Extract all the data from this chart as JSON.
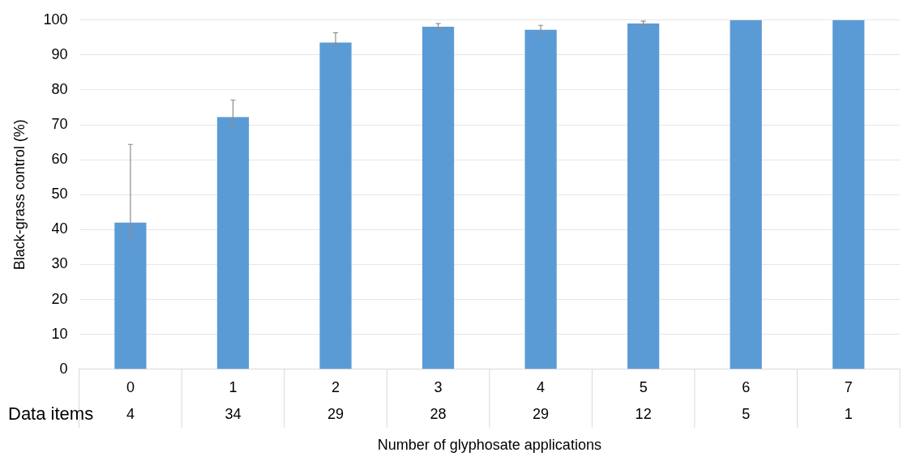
{
  "chart_data": {
    "type": "bar",
    "ylabel": "Black-grass control (%)",
    "xlabel": "Number of glyphosate applications",
    "categories": [
      "0",
      "1",
      "2",
      "3",
      "4",
      "5",
      "6",
      "7"
    ],
    "values": [
      42.0,
      72.2,
      93.6,
      98.1,
      97.2,
      99.0,
      100,
      100
    ],
    "errors": [
      [
        37.1,
        64.4
      ],
      [
        69.6,
        77.1
      ],
      [
        93.1,
        96.4
      ],
      [
        96.7,
        99.0
      ],
      [
        96.5,
        98.5
      ],
      [
        98.3,
        99.7
      ],
      null,
      null
    ],
    "color": "#5b9bd5",
    "ylim": [
      0,
      100
    ],
    "yticks": [
      0,
      10,
      20,
      30,
      40,
      50,
      60,
      70,
      80,
      90,
      100
    ],
    "grid": "y",
    "legend": false,
    "annotations": [
      "Data items",
      "4",
      "34",
      "29",
      "28",
      "29",
      "12",
      "5",
      "1"
    ]
  }
}
